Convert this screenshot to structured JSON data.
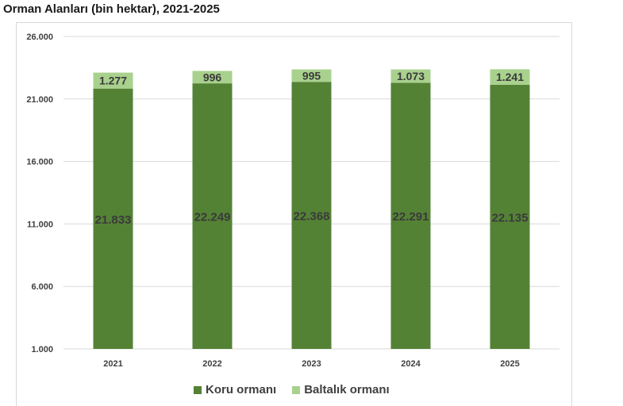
{
  "page_title": "Orman Alanları (bin hektar), 2021-2025",
  "colors": {
    "koru": "#548235",
    "baltalik": "#a9d18e",
    "grid": "#d9d9d9"
  },
  "chart_data": {
    "type": "bar",
    "stacked": true,
    "title": "Orman Alanları (bin hektar), 2021-2025",
    "categories": [
      "2021",
      "2022",
      "2023",
      "2024",
      "2025"
    ],
    "series": [
      {
        "name": "Koru ormanı",
        "values": [
          21833,
          22249,
          22368,
          22291,
          22135
        ],
        "labels": [
          "21.833",
          "22.249",
          "22.368",
          "22.291",
          "22.135"
        ]
      },
      {
        "name": "Baltalık ormanı",
        "values": [
          1277,
          996,
          995,
          1073,
          1241
        ],
        "labels": [
          "1.277",
          "996",
          "995",
          "1.073",
          "1.241"
        ]
      }
    ],
    "ylim": [
      1000,
      26000
    ],
    "yticks": [
      1000,
      6000,
      11000,
      16000,
      21000,
      26000
    ],
    "ytick_labels": [
      "1.000",
      "6.000",
      "11.000",
      "16.000",
      "21.000",
      "26.000"
    ],
    "grid": true,
    "legend": "bottom"
  }
}
